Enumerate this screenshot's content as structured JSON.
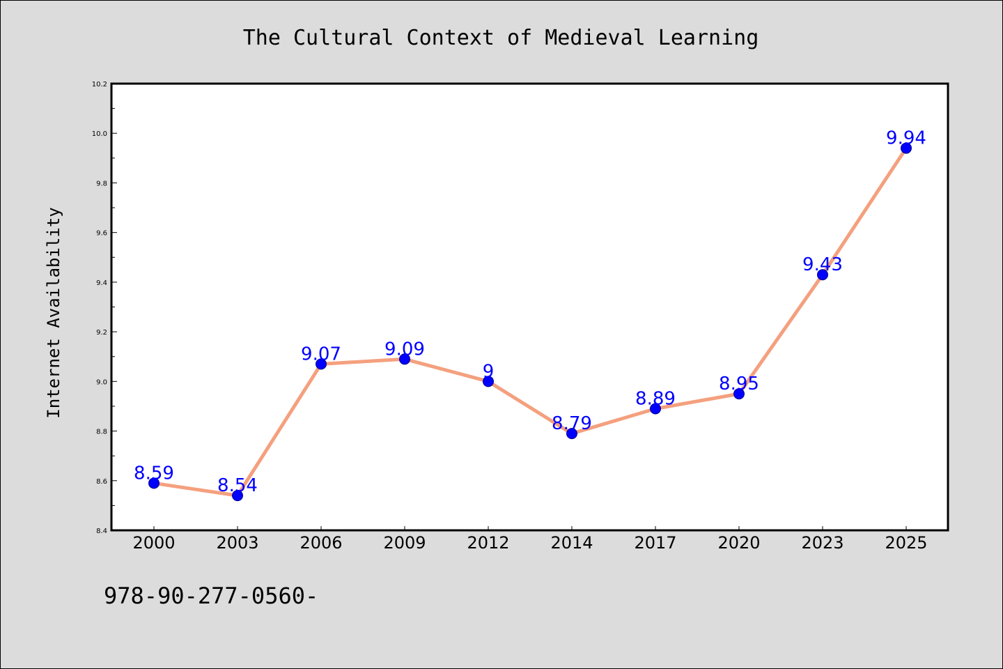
{
  "chart_data": {
    "type": "line",
    "title": "The Cultural Context of Medieval Learning",
    "xlabel": "",
    "ylabel": "Internet Availability",
    "categories": [
      "2000",
      "2003",
      "2006",
      "2009",
      "2012",
      "2014",
      "2017",
      "2020",
      "2023",
      "2025"
    ],
    "series": [
      {
        "values": [
          8.59,
          8.54,
          9.07,
          9.09,
          9.0,
          8.79,
          8.89,
          8.95,
          9.43,
          9.94
        ],
        "data_labels": [
          "8.59",
          "8.54",
          "9.07",
          "9.09",
          "9",
          "8.79",
          "8.89",
          "8.95",
          "9.43",
          "9.94"
        ]
      }
    ],
    "ylim": [
      8.4,
      10.2
    ],
    "yticks": [
      "8.4",
      "8.6",
      "8.8",
      "9.0",
      "9.2",
      "9.4",
      "9.6",
      "9.8",
      "10.0",
      "10.2"
    ],
    "grid": false,
    "legend": "none",
    "colors": {
      "line": "#f4a07e",
      "marker": "#0000ff",
      "label": "#0000ff",
      "background": "#dcdcdc",
      "plot_background": "#ffffff"
    }
  },
  "footer": {
    "text": "978-90-277-0560-"
  }
}
